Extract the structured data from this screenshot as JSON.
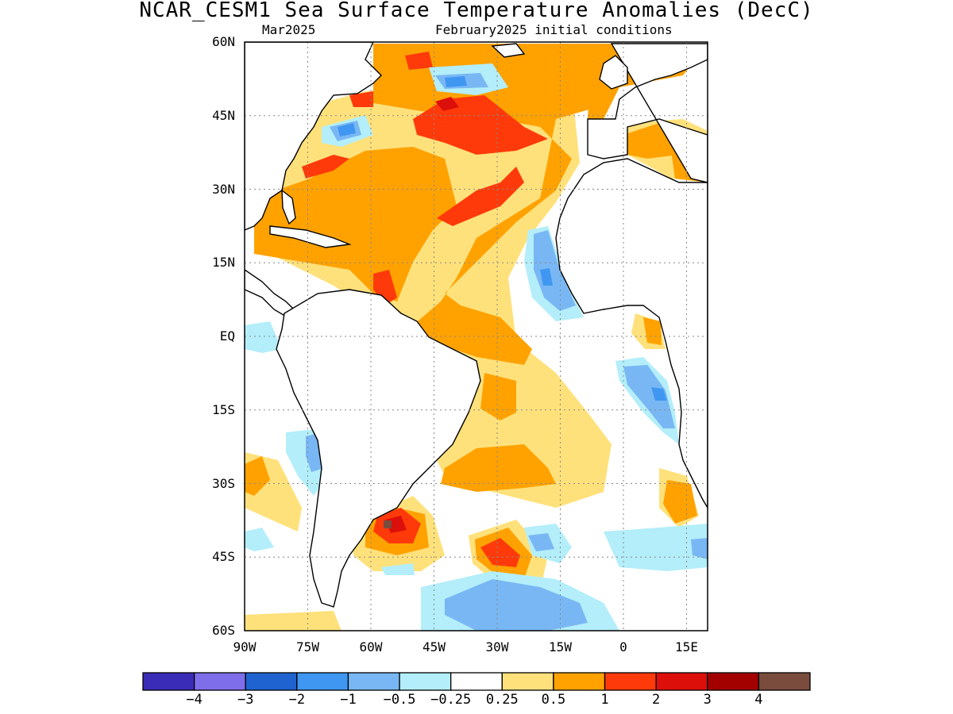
{
  "title": "NCAR_CESM1 Sea Surface Temperature Anomalies (DecC)",
  "subtitle_left": "Mar2025",
  "subtitle_right": "February2025 initial conditions",
  "map": {
    "lon_range": [
      -90,
      20
    ],
    "lat_range": [
      -60,
      60
    ],
    "lat_ticks": [
      "60N",
      "45N",
      "30N",
      "15N",
      "EQ",
      "15S",
      "30S",
      "45S",
      "60S"
    ],
    "lon_ticks": [
      "90W",
      "75W",
      "60W",
      "45W",
      "30W",
      "15W",
      "0",
      "15E"
    ],
    "gridlines": "dotted"
  },
  "colorbar": {
    "levels": [
      "-4",
      "-3",
      "-2",
      "-1",
      "-0.5",
      "-0.25",
      "0.25",
      "0.5",
      "1",
      "2",
      "3",
      "4"
    ],
    "colors": [
      "#3b2cb8",
      "#7f6ee9",
      "#1f63d0",
      "#3f97f1",
      "#79b7f4",
      "#b3eefa",
      "#ffffff",
      "#ffe17b",
      "#ffa200",
      "#ff3a0a",
      "#dc0f0b",
      "#a30000",
      "#7a4c3e"
    ]
  },
  "colors": {
    "warm_weak": "#ffe17b",
    "warm_mid": "#ffa200",
    "warm_strong": "#ff3a0a",
    "warm_very": "#dc0f0b",
    "cool_weak": "#b3eefa",
    "cool_mid": "#79b7f4",
    "cool_strong": "#3f97f1",
    "land": "#ffffff",
    "coast": "#000000"
  }
}
